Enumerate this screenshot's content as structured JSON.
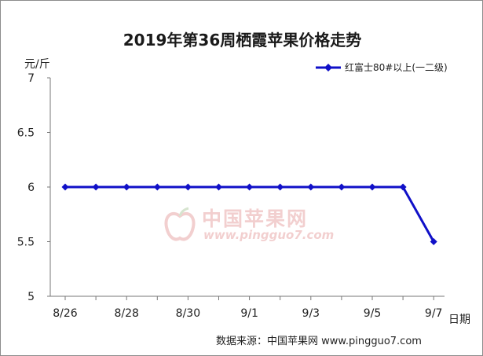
{
  "chart_data": {
    "type": "line",
    "title": "2019年第36周栖霞苹果价格走势",
    "ylabel": "元/斤",
    "xlabel": "日期",
    "ylim": [
      5,
      7
    ],
    "yticks": [
      "5",
      "5.5",
      "6",
      "6.5",
      "7"
    ],
    "categories": [
      "8/26",
      "8/27",
      "8/28",
      "8/29",
      "8/30",
      "8/31",
      "9/1",
      "9/2",
      "9/3",
      "9/4",
      "9/5",
      "9/6",
      "9/7"
    ],
    "xtick_labels": [
      "8/26",
      "8/28",
      "8/30",
      "9/1",
      "9/3",
      "9/5",
      "9/7"
    ],
    "series": [
      {
        "name": "红富士80#以上(一二级)",
        "color": "#1010c8",
        "values": [
          6,
          6,
          6,
          6,
          6,
          6,
          6,
          6,
          6,
          6,
          6,
          6,
          5.5
        ]
      }
    ],
    "grid": false,
    "legend_position": "top-right"
  },
  "watermark": {
    "text": "中国苹果网",
    "url": "www.pingguo7.com"
  },
  "source": "数据来源：中国苹果网 www.pingguo7.com"
}
